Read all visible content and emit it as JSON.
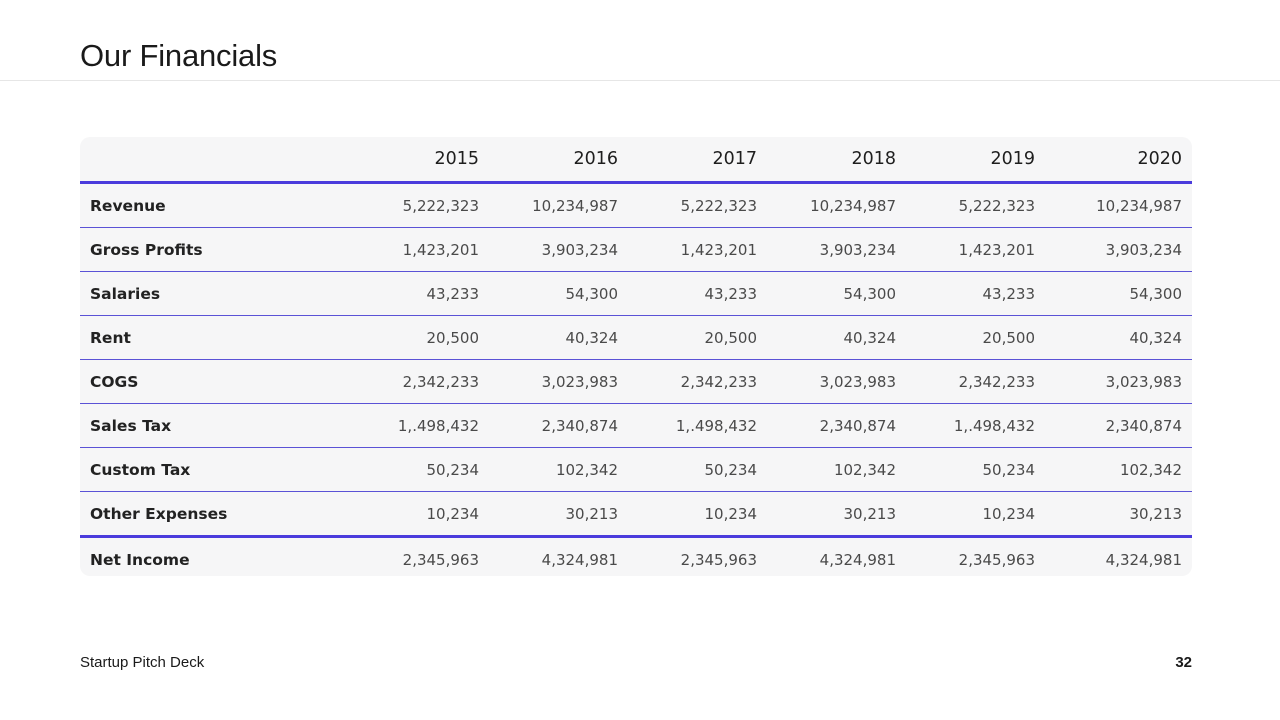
{
  "slide": {
    "title": "Our Financials",
    "footer_brand": "Startup Pitch Deck",
    "page_number": "32",
    "accent_color": "#4a3bdc"
  },
  "table": {
    "corner_label": "",
    "years": [
      "2015",
      "2016",
      "2017",
      "2018",
      "2019",
      "2020"
    ],
    "rows": [
      {
        "label": "Revenue",
        "values": [
          "5,222,323",
          "10,234,987",
          "5,222,323",
          "10,234,987",
          "5,222,323",
          "10,234,987"
        ]
      },
      {
        "label": "Gross Profits",
        "values": [
          "1,423,201",
          "3,903,234",
          "1,423,201",
          "3,903,234",
          "1,423,201",
          "3,903,234"
        ]
      },
      {
        "label": "Salaries",
        "values": [
          "43,233",
          "54,300",
          "43,233",
          "54,300",
          "43,233",
          "54,300"
        ]
      },
      {
        "label": "Rent",
        "values": [
          "20,500",
          "40,324",
          "20,500",
          "40,324",
          "20,500",
          "40,324"
        ]
      },
      {
        "label": "COGS",
        "values": [
          "2,342,233",
          "3,023,983",
          "2,342,233",
          "3,023,983",
          "2,342,233",
          "3,023,983"
        ]
      },
      {
        "label": "Sales Tax",
        "values": [
          "1,.498,432",
          "2,340,874",
          "1,.498,432",
          "2,340,874",
          "1,.498,432",
          "2,340,874"
        ]
      },
      {
        "label": "Custom Tax",
        "values": [
          "50,234",
          "102,342",
          "50,234",
          "102,342",
          "50,234",
          "102,342"
        ]
      },
      {
        "label": "Other Expenses",
        "values": [
          "10,234",
          "30,213",
          "10,234",
          "30,213",
          "10,234",
          "30,213"
        ]
      },
      {
        "label": "Net Income",
        "values": [
          "2,345,963",
          "4,324,981",
          "2,345,963",
          "4,324,981",
          "2,345,963",
          "4,324,981"
        ]
      }
    ]
  }
}
